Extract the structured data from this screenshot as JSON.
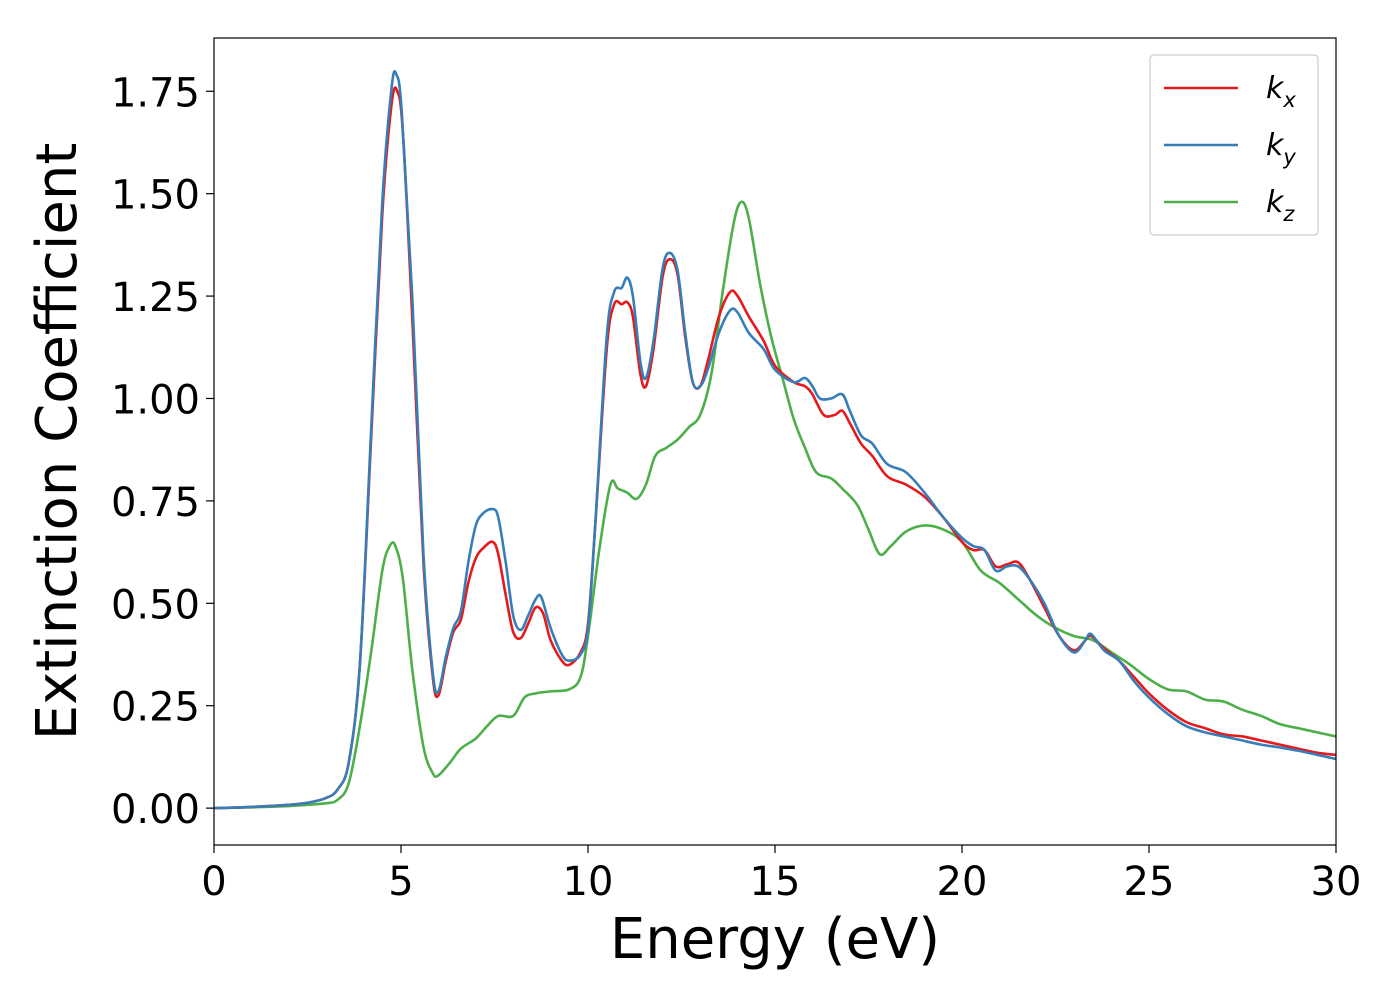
{
  "chart_data": {
    "type": "line",
    "title": "",
    "xlabel": "Energy (eV)",
    "ylabel": "Extinction Coefficient",
    "xlim": [
      0,
      30
    ],
    "ylim": [
      -0.09,
      1.88
    ],
    "xticks": [
      0,
      5,
      10,
      15,
      20,
      25,
      30
    ],
    "xtick_labels": [
      "0",
      "5",
      "10",
      "15",
      "20",
      "25",
      "30"
    ],
    "yticks": [
      0.0,
      0.25,
      0.5,
      0.75,
      1.0,
      1.25,
      1.5,
      1.75
    ],
    "ytick_labels": [
      "0.00",
      "0.25",
      "0.50",
      "0.75",
      "1.00",
      "1.25",
      "1.50",
      "1.75"
    ],
    "grid": false,
    "legend_position": "top-right",
    "series": [
      {
        "name": "k_x",
        "label_main": "k",
        "label_sub": "x",
        "color": "#e41a1c",
        "points": [
          [
            0,
            0.0
          ],
          [
            1,
            0.003
          ],
          [
            2,
            0.008
          ],
          [
            2.5,
            0.013
          ],
          [
            3,
            0.025
          ],
          [
            3.3,
            0.045
          ],
          [
            3.6,
            0.11
          ],
          [
            3.9,
            0.35
          ],
          [
            4.2,
            0.9
          ],
          [
            4.5,
            1.45
          ],
          [
            4.75,
            1.72
          ],
          [
            4.9,
            1.75
          ],
          [
            5.05,
            1.65
          ],
          [
            5.3,
            1.2
          ],
          [
            5.6,
            0.6
          ],
          [
            5.85,
            0.32
          ],
          [
            6.0,
            0.275
          ],
          [
            6.2,
            0.36
          ],
          [
            6.4,
            0.43
          ],
          [
            6.6,
            0.46
          ],
          [
            6.8,
            0.55
          ],
          [
            7.0,
            0.61
          ],
          [
            7.2,
            0.635
          ],
          [
            7.45,
            0.65
          ],
          [
            7.6,
            0.62
          ],
          [
            7.8,
            0.52
          ],
          [
            8.0,
            0.43
          ],
          [
            8.2,
            0.415
          ],
          [
            8.4,
            0.45
          ],
          [
            8.6,
            0.49
          ],
          [
            8.8,
            0.475
          ],
          [
            9.0,
            0.41
          ],
          [
            9.3,
            0.36
          ],
          [
            9.5,
            0.35
          ],
          [
            9.8,
            0.38
          ],
          [
            10.0,
            0.45
          ],
          [
            10.2,
            0.7
          ],
          [
            10.5,
            1.12
          ],
          [
            10.7,
            1.23
          ],
          [
            10.9,
            1.23
          ],
          [
            11.05,
            1.235
          ],
          [
            11.2,
            1.2
          ],
          [
            11.4,
            1.06
          ],
          [
            11.55,
            1.03
          ],
          [
            11.75,
            1.12
          ],
          [
            12.0,
            1.3
          ],
          [
            12.2,
            1.34
          ],
          [
            12.4,
            1.3
          ],
          [
            12.6,
            1.15
          ],
          [
            12.8,
            1.04
          ],
          [
            13.0,
            1.03
          ],
          [
            13.2,
            1.09
          ],
          [
            13.5,
            1.2
          ],
          [
            13.8,
            1.26
          ],
          [
            14.0,
            1.25
          ],
          [
            14.3,
            1.2
          ],
          [
            14.7,
            1.14
          ],
          [
            15.0,
            1.08
          ],
          [
            15.5,
            1.04
          ],
          [
            15.8,
            1.03
          ],
          [
            16.0,
            1.01
          ],
          [
            16.3,
            0.96
          ],
          [
            16.6,
            0.96
          ],
          [
            16.8,
            0.97
          ],
          [
            17.0,
            0.94
          ],
          [
            17.3,
            0.89
          ],
          [
            17.6,
            0.86
          ],
          [
            18.0,
            0.81
          ],
          [
            18.5,
            0.79
          ],
          [
            19.0,
            0.76
          ],
          [
            19.5,
            0.71
          ],
          [
            20.0,
            0.65
          ],
          [
            20.3,
            0.63
          ],
          [
            20.6,
            0.63
          ],
          [
            20.9,
            0.59
          ],
          [
            21.2,
            0.595
          ],
          [
            21.5,
            0.6
          ],
          [
            21.8,
            0.56
          ],
          [
            22.2,
            0.49
          ],
          [
            22.6,
            0.42
          ],
          [
            23.0,
            0.385
          ],
          [
            23.3,
            0.41
          ],
          [
            23.45,
            0.42
          ],
          [
            23.8,
            0.39
          ],
          [
            24.2,
            0.36
          ],
          [
            24.6,
            0.32
          ],
          [
            25.0,
            0.28
          ],
          [
            25.5,
            0.24
          ],
          [
            26.0,
            0.21
          ],
          [
            26.5,
            0.195
          ],
          [
            27.0,
            0.18
          ],
          [
            27.5,
            0.175
          ],
          [
            28.0,
            0.165
          ],
          [
            28.5,
            0.155
          ],
          [
            29.0,
            0.145
          ],
          [
            29.5,
            0.135
          ],
          [
            30.0,
            0.13
          ]
        ]
      },
      {
        "name": "k_y",
        "label_main": "k",
        "label_sub": "y",
        "color": "#377eb8",
        "points": [
          [
            0,
            0.0
          ],
          [
            1,
            0.003
          ],
          [
            2,
            0.008
          ],
          [
            2.5,
            0.013
          ],
          [
            3,
            0.025
          ],
          [
            3.3,
            0.045
          ],
          [
            3.6,
            0.11
          ],
          [
            3.9,
            0.35
          ],
          [
            4.2,
            0.92
          ],
          [
            4.5,
            1.48
          ],
          [
            4.75,
            1.76
          ],
          [
            4.88,
            1.79
          ],
          [
            5.02,
            1.7
          ],
          [
            5.3,
            1.25
          ],
          [
            5.6,
            0.62
          ],
          [
            5.85,
            0.33
          ],
          [
            6.0,
            0.285
          ],
          [
            6.2,
            0.37
          ],
          [
            6.4,
            0.44
          ],
          [
            6.6,
            0.48
          ],
          [
            6.8,
            0.6
          ],
          [
            7.0,
            0.69
          ],
          [
            7.2,
            0.72
          ],
          [
            7.45,
            0.73
          ],
          [
            7.6,
            0.71
          ],
          [
            7.8,
            0.6
          ],
          [
            8.0,
            0.47
          ],
          [
            8.2,
            0.435
          ],
          [
            8.4,
            0.47
          ],
          [
            8.6,
            0.51
          ],
          [
            8.75,
            0.515
          ],
          [
            9.0,
            0.44
          ],
          [
            9.3,
            0.375
          ],
          [
            9.5,
            0.36
          ],
          [
            9.8,
            0.375
          ],
          [
            10.0,
            0.44
          ],
          [
            10.2,
            0.7
          ],
          [
            10.5,
            1.15
          ],
          [
            10.7,
            1.26
          ],
          [
            10.9,
            1.27
          ],
          [
            11.05,
            1.295
          ],
          [
            11.2,
            1.25
          ],
          [
            11.4,
            1.09
          ],
          [
            11.55,
            1.05
          ],
          [
            11.75,
            1.14
          ],
          [
            12.0,
            1.32
          ],
          [
            12.2,
            1.355
          ],
          [
            12.4,
            1.31
          ],
          [
            12.6,
            1.16
          ],
          [
            12.8,
            1.04
          ],
          [
            13.0,
            1.03
          ],
          [
            13.2,
            1.07
          ],
          [
            13.5,
            1.16
          ],
          [
            13.8,
            1.215
          ],
          [
            14.0,
            1.21
          ],
          [
            14.3,
            1.16
          ],
          [
            14.7,
            1.12
          ],
          [
            15.0,
            1.07
          ],
          [
            15.5,
            1.04
          ],
          [
            15.8,
            1.05
          ],
          [
            16.0,
            1.03
          ],
          [
            16.2,
            1.0
          ],
          [
            16.5,
            1.0
          ],
          [
            16.8,
            1.01
          ],
          [
            17.0,
            0.97
          ],
          [
            17.3,
            0.91
          ],
          [
            17.6,
            0.89
          ],
          [
            18.0,
            0.84
          ],
          [
            18.5,
            0.82
          ],
          [
            19.0,
            0.77
          ],
          [
            19.5,
            0.71
          ],
          [
            20.0,
            0.66
          ],
          [
            20.3,
            0.64
          ],
          [
            20.6,
            0.63
          ],
          [
            20.9,
            0.58
          ],
          [
            21.2,
            0.59
          ],
          [
            21.5,
            0.59
          ],
          [
            21.8,
            0.56
          ],
          [
            22.2,
            0.5
          ],
          [
            22.6,
            0.42
          ],
          [
            23.0,
            0.38
          ],
          [
            23.3,
            0.41
          ],
          [
            23.45,
            0.425
          ],
          [
            23.8,
            0.385
          ],
          [
            24.2,
            0.36
          ],
          [
            24.6,
            0.31
          ],
          [
            25.0,
            0.27
          ],
          [
            25.5,
            0.23
          ],
          [
            26.0,
            0.2
          ],
          [
            26.5,
            0.185
          ],
          [
            27.0,
            0.175
          ],
          [
            27.5,
            0.165
          ],
          [
            28.0,
            0.155
          ],
          [
            28.5,
            0.148
          ],
          [
            29.0,
            0.14
          ],
          [
            29.5,
            0.13
          ],
          [
            30.0,
            0.12
          ]
        ]
      },
      {
        "name": "k_z",
        "label_main": "k",
        "label_sub": "z",
        "color": "#4daf4a",
        "points": [
          [
            0,
            0.0
          ],
          [
            1,
            0.002
          ],
          [
            2,
            0.005
          ],
          [
            2.5,
            0.008
          ],
          [
            3,
            0.012
          ],
          [
            3.3,
            0.02
          ],
          [
            3.6,
            0.06
          ],
          [
            3.9,
            0.2
          ],
          [
            4.2,
            0.38
          ],
          [
            4.5,
            0.58
          ],
          [
            4.7,
            0.64
          ],
          [
            4.85,
            0.64
          ],
          [
            5.05,
            0.56
          ],
          [
            5.3,
            0.34
          ],
          [
            5.6,
            0.15
          ],
          [
            5.85,
            0.085
          ],
          [
            6.0,
            0.08
          ],
          [
            6.3,
            0.11
          ],
          [
            6.6,
            0.145
          ],
          [
            7.0,
            0.17
          ],
          [
            7.3,
            0.2
          ],
          [
            7.6,
            0.225
          ],
          [
            8.0,
            0.225
          ],
          [
            8.3,
            0.27
          ],
          [
            8.6,
            0.28
          ],
          [
            9.0,
            0.285
          ],
          [
            9.5,
            0.29
          ],
          [
            9.8,
            0.32
          ],
          [
            10.0,
            0.42
          ],
          [
            10.3,
            0.63
          ],
          [
            10.6,
            0.79
          ],
          [
            10.8,
            0.78
          ],
          [
            11.05,
            0.77
          ],
          [
            11.3,
            0.755
          ],
          [
            11.55,
            0.79
          ],
          [
            11.8,
            0.86
          ],
          [
            12.1,
            0.88
          ],
          [
            12.4,
            0.9
          ],
          [
            12.7,
            0.93
          ],
          [
            13.0,
            0.96
          ],
          [
            13.3,
            1.06
          ],
          [
            13.6,
            1.26
          ],
          [
            13.9,
            1.43
          ],
          [
            14.1,
            1.48
          ],
          [
            14.3,
            1.44
          ],
          [
            14.6,
            1.28
          ],
          [
            14.9,
            1.15
          ],
          [
            15.2,
            1.05
          ],
          [
            15.5,
            0.95
          ],
          [
            15.8,
            0.88
          ],
          [
            16.1,
            0.82
          ],
          [
            16.5,
            0.805
          ],
          [
            16.8,
            0.78
          ],
          [
            17.2,
            0.74
          ],
          [
            17.5,
            0.68
          ],
          [
            17.8,
            0.62
          ],
          [
            18.1,
            0.64
          ],
          [
            18.5,
            0.675
          ],
          [
            19.0,
            0.69
          ],
          [
            19.5,
            0.68
          ],
          [
            20.0,
            0.65
          ],
          [
            20.5,
            0.58
          ],
          [
            21.0,
            0.55
          ],
          [
            21.5,
            0.51
          ],
          [
            22.0,
            0.47
          ],
          [
            22.5,
            0.44
          ],
          [
            23.0,
            0.42
          ],
          [
            23.5,
            0.41
          ],
          [
            24.0,
            0.38
          ],
          [
            24.5,
            0.35
          ],
          [
            25.0,
            0.315
          ],
          [
            25.5,
            0.29
          ],
          [
            26.0,
            0.285
          ],
          [
            26.5,
            0.265
          ],
          [
            27.0,
            0.26
          ],
          [
            27.5,
            0.24
          ],
          [
            28.0,
            0.225
          ],
          [
            28.5,
            0.205
          ],
          [
            29.0,
            0.195
          ],
          [
            29.5,
            0.185
          ],
          [
            30.0,
            0.175
          ]
        ]
      }
    ]
  }
}
